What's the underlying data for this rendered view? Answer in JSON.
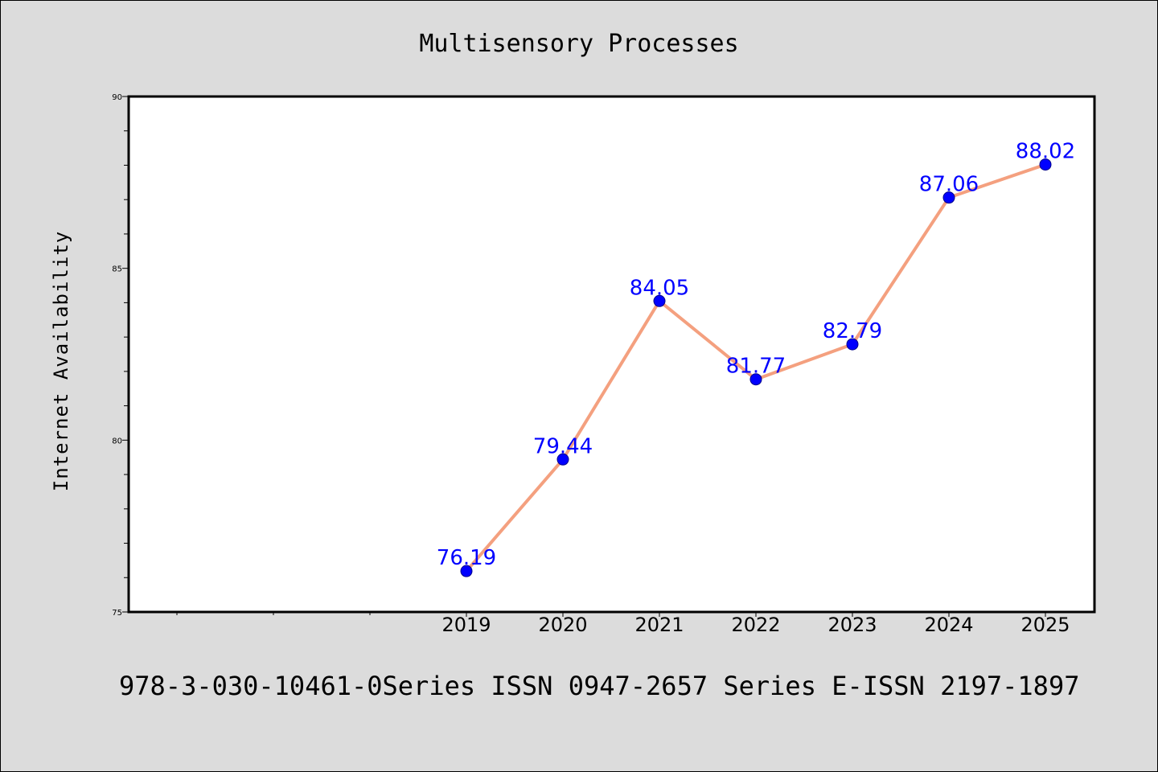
{
  "chart_data": {
    "type": "line",
    "title": "Multisensory Processes",
    "xlabel": "",
    "ylabel": "Internet Availability",
    "x": [
      "2019",
      "2020",
      "2021",
      "2022",
      "2023",
      "2024",
      "2025"
    ],
    "series": [
      {
        "values": [
          76.19,
          79.44,
          84.05,
          81.77,
          82.79,
          87.06,
          88.02
        ],
        "labels": [
          "76.19",
          "79.44",
          "84.05",
          "81.77",
          "82.79",
          "87.06",
          "88.02"
        ]
      }
    ],
    "ylim": [
      75,
      90
    ],
    "yticks": [
      "75",
      "80",
      "85",
      "90"
    ],
    "grid": false,
    "legend": "none",
    "colors": {
      "line": "#f4a07f",
      "marker": "#0000ff",
      "label": "#0000ff",
      "plot_bg": "#ffffff",
      "figure_bg": "#dcdcdc"
    }
  },
  "footer": "978-3-030-10461-0Series ISSN 0947-2657 Series E-ISSN 2197-1897"
}
